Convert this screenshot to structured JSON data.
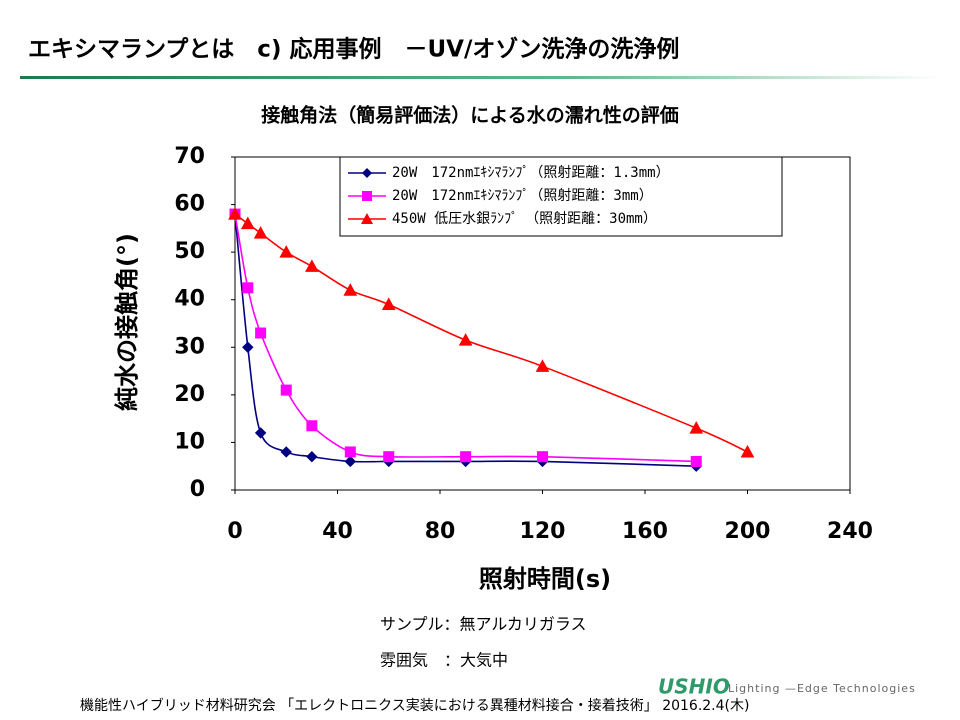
{
  "header": {
    "title": "エキシマランプとは　c) 応用事例　－UV/オゾン洗浄の洗浄例"
  },
  "chart_data": {
    "type": "line",
    "title": "接触角法（簡易評価法）による水の濡れ性の評価",
    "x_label": "照射時間(s)",
    "y_label": "純水の接触角(°)",
    "xlim": [
      0,
      240
    ],
    "xticks": [
      0,
      40,
      80,
      120,
      160,
      200,
      240
    ],
    "ylim": [
      0,
      70
    ],
    "yticks": [
      0,
      10,
      20,
      30,
      40,
      50,
      60,
      70
    ],
    "grid": false,
    "legend": "top",
    "series": [
      {
        "name": "20W　172nmｴｷｼﾏﾗﾝﾌﾟ（照射距離：1.3mm）",
        "color": "#000080",
        "marker": "diamond",
        "x": [
          0,
          5,
          10,
          20,
          30,
          45,
          60,
          90,
          120,
          180
        ],
        "values": [
          58,
          30,
          12,
          8,
          7,
          6,
          6,
          6,
          6,
          5
        ]
      },
      {
        "name": "20W　172nmｴｷｼﾏﾗﾝﾌﾟ（照射距離：3mm）",
        "color": "#ff00ff",
        "marker": "square",
        "x": [
          0,
          5,
          10,
          20,
          30,
          45,
          60,
          90,
          120,
          180
        ],
        "values": [
          58,
          42.5,
          33,
          21,
          13.5,
          8,
          7,
          7,
          7,
          6
        ]
      },
      {
        "name": "450W 低圧水銀ﾗﾝﾌﾟ　（照射距離：30mm）",
        "color": "#ff0000",
        "marker": "triangle",
        "x": [
          0,
          5,
          10,
          20,
          30,
          45,
          60,
          90,
          120,
          180,
          200
        ],
        "values": [
          58,
          56,
          54,
          50,
          47,
          42,
          39,
          31.5,
          26,
          13,
          8
        ]
      }
    ]
  },
  "notes": [
    "サンプル：無アルカリガラス",
    "雰囲気　：大気中"
  ],
  "footer": {
    "text": "機能性ハイブリッド材料研究会 「エレクトロニクス実装における異種材料接合・接着技術」 2016.2.4(木)"
  },
  "logo": {
    "brand": "USHIO",
    "tagline": "Lighting —Edge Technologies"
  }
}
